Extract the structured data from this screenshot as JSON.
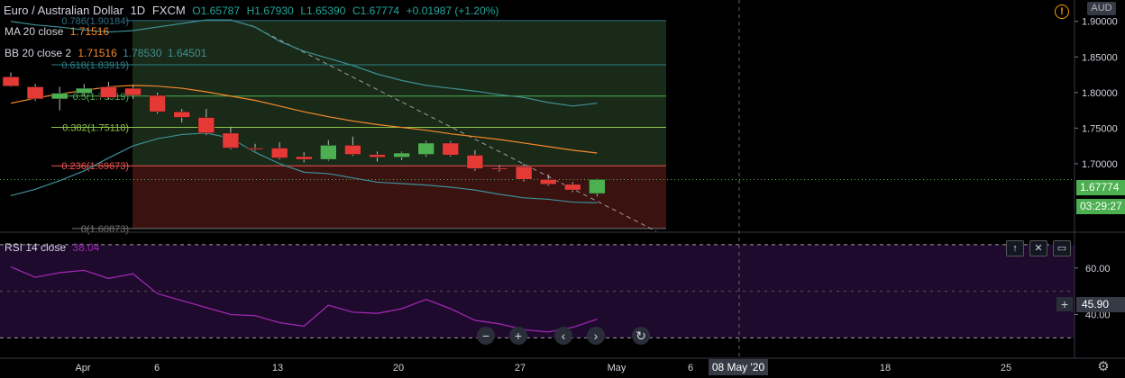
{
  "header": {
    "symbol": "Euro / Australian Dollar",
    "interval": "1D",
    "exchange": "FXCM",
    "open": "O1.65787",
    "high": "H1.67930",
    "low": "L1.65390",
    "close": "C1.67774",
    "change": "+0.01987 (+1.20%)"
  },
  "indicators": {
    "ma": {
      "label": "MA 20 close",
      "value": "1.71516"
    },
    "bb": {
      "label": "BB 20 close 2",
      "basis": "1.71516",
      "upper": "1.78530",
      "lower": "1.64501"
    },
    "rsi": {
      "label": "RSI 14 close",
      "value": "38.04"
    }
  },
  "currency_badge": "AUD",
  "price_label": "1.67774",
  "countdown_label": "03:29:27",
  "rsi_value_label": "45.90",
  "crosshair_date_label": "08 May '20",
  "colors": {
    "up": "#4caf50",
    "down": "#e53935",
    "ma": "#f5892b",
    "bb": "#3d8f96",
    "rsi": "#9c27b0",
    "rsi_bg": "#1e0a2c",
    "fib_green": "#1a2a18",
    "fib_red": "#3a1210",
    "accent_orange": "#ff9800"
  },
  "toolbar": {
    "zoom_out": "−",
    "zoom_in": "+",
    "scroll_left": "‹",
    "scroll_right": "›",
    "reset": "↻"
  },
  "chart_data": [
    {
      "type": "candlestick",
      "title": "Euro / Australian Dollar · 1D · FXCM",
      "x_tick_labels": [
        "Apr",
        "6",
        "13",
        "20",
        "27",
        "May",
        "6",
        "18",
        "25"
      ],
      "y_tick_labels": [
        "1.90000",
        "1.85000",
        "1.80000",
        "1.75000",
        "1.70000"
      ],
      "ylim": [
        1.605,
        1.93
      ],
      "candles": [
        {
          "o": 1.822,
          "h": 1.828,
          "l": 1.808,
          "c": 1.809
        },
        {
          "o": 1.808,
          "h": 1.812,
          "l": 1.788,
          "c": 1.791
        },
        {
          "o": 1.791,
          "h": 1.808,
          "l": 1.775,
          "c": 1.799
        },
        {
          "o": 1.799,
          "h": 1.812,
          "l": 1.795,
          "c": 1.806
        },
        {
          "o": 1.808,
          "h": 1.815,
          "l": 1.79,
          "c": 1.793
        },
        {
          "o": 1.806,
          "h": 1.81,
          "l": 1.791,
          "c": 1.796
        },
        {
          "o": 1.796,
          "h": 1.8,
          "l": 1.77,
          "c": 1.773
        },
        {
          "o": 1.773,
          "h": 1.777,
          "l": 1.758,
          "c": 1.765
        },
        {
          "o": 1.765,
          "h": 1.777,
          "l": 1.74,
          "c": 1.743
        },
        {
          "o": 1.743,
          "h": 1.752,
          "l": 1.72,
          "c": 1.722
        },
        {
          "o": 1.722,
          "h": 1.728,
          "l": 1.718,
          "c": 1.72
        },
        {
          "o": 1.722,
          "h": 1.73,
          "l": 1.706,
          "c": 1.708
        },
        {
          "o": 1.71,
          "h": 1.716,
          "l": 1.702,
          "c": 1.706
        },
        {
          "o": 1.706,
          "h": 1.733,
          "l": 1.704,
          "c": 1.726
        },
        {
          "o": 1.726,
          "h": 1.738,
          "l": 1.711,
          "c": 1.713
        },
        {
          "o": 1.713,
          "h": 1.717,
          "l": 1.703,
          "c": 1.709
        },
        {
          "o": 1.709,
          "h": 1.717,
          "l": 1.705,
          "c": 1.715
        },
        {
          "o": 1.713,
          "h": 1.732,
          "l": 1.71,
          "c": 1.729
        },
        {
          "o": 1.729,
          "h": 1.732,
          "l": 1.71,
          "c": 1.712
        },
        {
          "o": 1.712,
          "h": 1.719,
          "l": 1.69,
          "c": 1.693
        },
        {
          "o": 1.694,
          "h": 1.698,
          "l": 1.689,
          "c": 1.693
        },
        {
          "o": 1.696,
          "h": 1.7,
          "l": 1.675,
          "c": 1.678
        },
        {
          "o": 1.678,
          "h": 1.685,
          "l": 1.669,
          "c": 1.671
        },
        {
          "o": 1.671,
          "h": 1.674,
          "l": 1.66,
          "c": 1.663
        },
        {
          "o": 1.658,
          "h": 1.679,
          "l": 1.654,
          "c": 1.678
        }
      ],
      "ma20": [
        1.785,
        1.792,
        1.798,
        1.803,
        1.808,
        1.81,
        1.809,
        1.806,
        1.801,
        1.795,
        1.789,
        1.781,
        1.773,
        1.766,
        1.76,
        1.755,
        1.751,
        1.747,
        1.742,
        1.738,
        1.734,
        1.729,
        1.724,
        1.719,
        1.715
      ],
      "bb_upper": [
        1.9,
        1.895,
        1.892,
        1.888,
        1.885,
        1.887,
        1.892,
        1.897,
        1.902,
        1.902,
        1.892,
        1.872,
        1.858,
        1.848,
        1.838,
        1.826,
        1.817,
        1.81,
        1.806,
        1.802,
        1.797,
        1.793,
        1.786,
        1.781,
        1.785
      ],
      "bb_lower": [
        1.655,
        1.664,
        1.676,
        1.69,
        1.708,
        1.725,
        1.735,
        1.741,
        1.743,
        1.736,
        1.716,
        1.7,
        1.688,
        1.686,
        1.68,
        1.674,
        1.672,
        1.67,
        1.667,
        1.663,
        1.657,
        1.652,
        1.65,
        1.646,
        1.645
      ],
      "fib_levels": [
        {
          "label": "0.786(1.90184)",
          "value": 1.901
        },
        {
          "label": "0.618(1.83919)",
          "value": 1.839
        },
        {
          "label": "0.5(1.79519)",
          "value": 1.795
        },
        {
          "label": "0.382(1.75118)",
          "value": 1.751
        },
        {
          "label": "0.236(1.69673)",
          "value": 1.697
        },
        {
          "label": "0(1.60873)",
          "value": 1.609
        }
      ],
      "last_price": 1.67774
    },
    {
      "type": "line",
      "title": "RSI 14 close",
      "y_tick_labels": [
        "60.00",
        "40.00"
      ],
      "ylim": [
        22,
        75
      ],
      "values": [
        60.5,
        56,
        58,
        59,
        55.5,
        57.5,
        49,
        46,
        43,
        40,
        39.5,
        36.5,
        35,
        44,
        41,
        40.5,
        42.5,
        46.5,
        42.5,
        37.5,
        36,
        33.5,
        32.5,
        34.5,
        38
      ]
    }
  ]
}
